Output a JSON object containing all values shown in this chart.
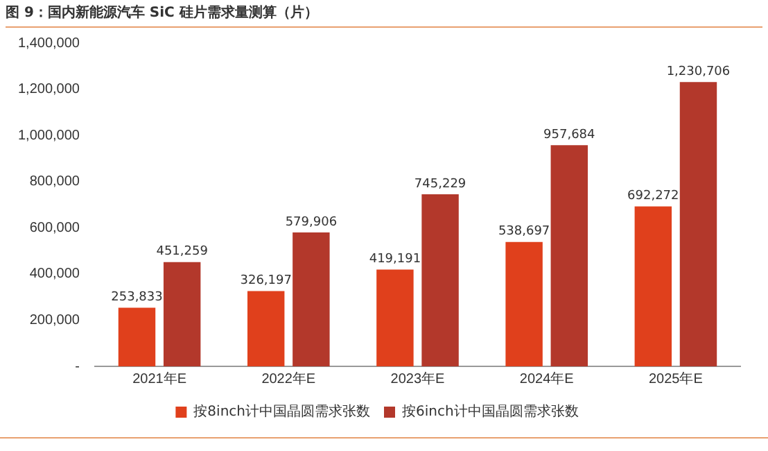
{
  "chart_data": {
    "type": "bar",
    "title": "图 9：国内新能源汽车 SiC 硅片需求量测算（片）",
    "categories": [
      "2021年E",
      "2022年E",
      "2023年E",
      "2024年E",
      "2025年E"
    ],
    "series": [
      {
        "name": "按8inch计中国晶圆需求张数",
        "color": "#e0401c",
        "values": [
          253833,
          326197,
          419191,
          538697,
          692272
        ],
        "value_labels": [
          "253,833",
          "326,197",
          "419,191",
          "538,697",
          "692,272"
        ]
      },
      {
        "name": "按6inch计中国晶圆需求张数",
        "color": "#b3382b",
        "values": [
          451259,
          579906,
          745229,
          957684,
          1230706
        ],
        "value_labels": [
          "451,259",
          "579,906",
          "745,229",
          "957,684",
          "1,230,706"
        ]
      }
    ],
    "ylim": [
      0,
      1400000
    ],
    "yticks": [
      {
        "value": 0,
        "label": "-"
      },
      {
        "value": 200000,
        "label": "200,000"
      },
      {
        "value": 400000,
        "label": "400,000"
      },
      {
        "value": 600000,
        "label": "600,000"
      },
      {
        "value": 800000,
        "label": "800,000"
      },
      {
        "value": 1000000,
        "label": "1,000,000"
      },
      {
        "value": 1200000,
        "label": "1,200,000"
      },
      {
        "value": 1400000,
        "label": "1,400,000"
      }
    ],
    "legend": "bottom",
    "grid": false
  }
}
